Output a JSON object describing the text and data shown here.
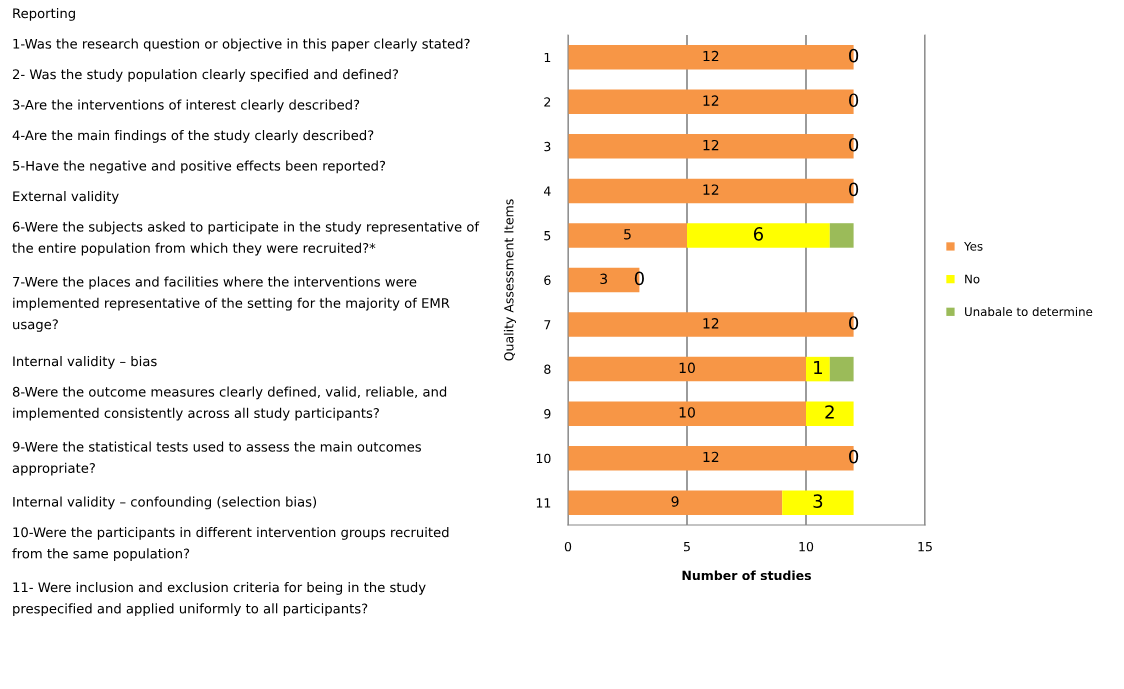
{
  "chart_data": {
    "type": "bar",
    "orientation": "horizontal",
    "stacked": true,
    "categories": [
      "1",
      "2",
      "3",
      "4",
      "5",
      "6",
      "7",
      "8",
      "9",
      "10",
      "11"
    ],
    "series": [
      {
        "name": "Yes",
        "color": "#f79646",
        "values": [
          12,
          12,
          12,
          12,
          5,
          3,
          12,
          10,
          10,
          12,
          9
        ],
        "value_labels": [
          "12",
          "12",
          "12",
          "12",
          "5",
          "3",
          "12",
          "10",
          "10",
          "12",
          "9"
        ]
      },
      {
        "name": "No",
        "color": "#ffff00",
        "values": [
          0,
          0,
          0,
          0,
          6,
          0,
          0,
          1,
          2,
          0,
          3
        ],
        "value_labels": [
          "0",
          "0",
          "0",
          "0",
          "6",
          "0",
          "0",
          "1",
          "2",
          "0",
          "3"
        ]
      },
      {
        "name": "Unabale to determine",
        "color": "#9bbb59",
        "values": [
          0,
          0,
          0,
          0,
          1,
          0,
          0,
          1,
          0,
          0,
          0
        ]
      }
    ],
    "xlim": [
      0,
      15
    ],
    "xticks": [
      0,
      5,
      10,
      15
    ],
    "grid": "x",
    "legend": "right",
    "xlabel": "Number of studies",
    "ylabel": "Quality Assessment Items",
    "annotations": [
      "Reporting",
      "1-Was the research question or objective in this paper clearly stated?",
      "2- Was the study population clearly specified and defined?",
      "3-Are the interventions of interest clearly described?",
      "4-Are the main findings of the study clearly described?",
      "5-Have the negative and positive effects been reported?",
      "External validity",
      "6-Were the subjects asked to participate in the study representative of the entire population from which they were recruited?*",
      "7-Were the places and facilities where the interventions were implemented representative of the setting for the majority of EMR usage?",
      "Internal validity – bias",
      "8-Were the outcome measures clearly defined, valid, reliable, and implemented consistently across all study participants?",
      "9-Were the statistical tests used to assess the main outcomes appropriate?",
      "Internal validity – confounding (selection bias)",
      "10-Were the participants in different intervention groups recruited from the same population?",
      "11- Were inclusion and exclusion criteria for being in the study prespecified and applied uniformly to all participants?"
    ]
  }
}
